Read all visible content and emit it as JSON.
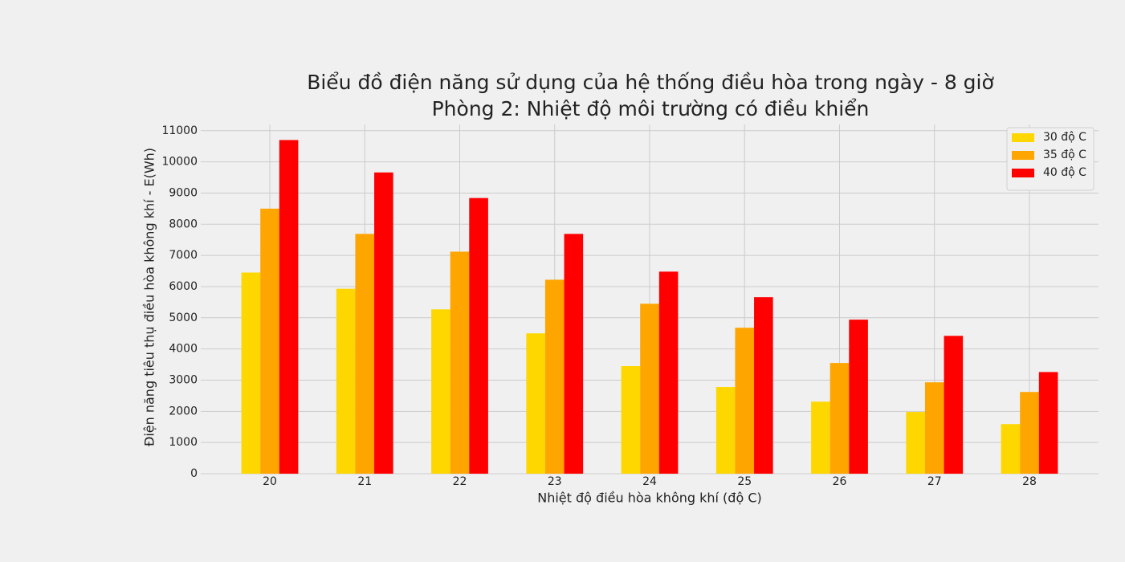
{
  "chart_data": {
    "type": "bar",
    "title": "Biểu đồ điện năng sử dụng của hệ thống điều hòa trong ngày - 8 giờ",
    "subtitle": "Phòng 2: Nhiệt độ môi trường có điều khiển",
    "x_label": "Nhiệt độ điều hòa không khí (độ C)",
    "y_label": "Điện năng tiêu thụ điều hòa không khí - E(Wh)",
    "categories": [
      "20",
      "21",
      "22",
      "23",
      "24",
      "25",
      "26",
      "27",
      "28"
    ],
    "series": [
      {
        "name": "30 độ C",
        "color": "#ffd700",
        "values": [
          6450,
          5930,
          5270,
          4500,
          3450,
          2780,
          2310,
          1980,
          1590
        ]
      },
      {
        "name": "35 độ C",
        "color": "#ffa500",
        "values": [
          8500,
          7690,
          7120,
          6220,
          5450,
          4680,
          3550,
          2930,
          2620
        ]
      },
      {
        "name": "40 độ C",
        "color": "#ff0000",
        "values": [
          10700,
          9660,
          8840,
          7690,
          6480,
          5660,
          4940,
          4420,
          3260
        ]
      }
    ],
    "ylim": [
      0,
      11200
    ],
    "yticks": [
      0,
      1000,
      2000,
      3000,
      4000,
      5000,
      6000,
      7000,
      8000,
      9000,
      10000,
      11000
    ],
    "grid": true,
    "legend": "upper right"
  }
}
